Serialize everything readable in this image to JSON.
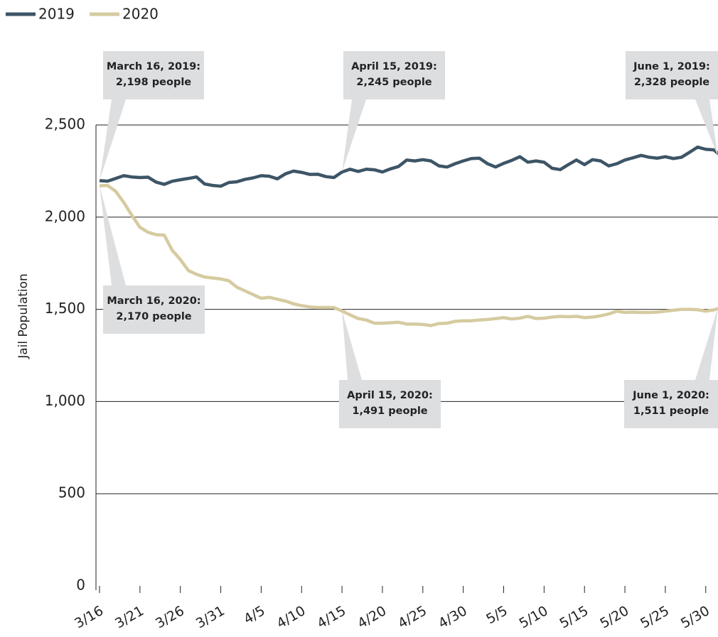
{
  "chart_data": {
    "type": "line",
    "y_label": "Jail Population",
    "categories": [
      "3/16",
      null,
      null,
      null,
      null,
      "3/21",
      null,
      null,
      null,
      null,
      "3/26",
      null,
      null,
      null,
      null,
      "3/31",
      null,
      null,
      null,
      null,
      "4/5",
      null,
      null,
      null,
      null,
      "4/10",
      null,
      null,
      null,
      null,
      "4/15",
      null,
      null,
      null,
      null,
      "4/20",
      null,
      null,
      null,
      null,
      "4/25",
      null,
      null,
      null,
      null,
      "4/30",
      null,
      null,
      null,
      null,
      "5/5",
      null,
      null,
      null,
      null,
      "5/10",
      null,
      null,
      null,
      null,
      "5/15",
      null,
      null,
      null,
      null,
      "5/20",
      null,
      null,
      null,
      null,
      "5/25",
      null,
      null,
      null,
      null,
      "5/30",
      null,
      null
    ],
    "series": [
      {
        "name": "2019",
        "color": "#3d5566",
        "values": [
          2198,
          2195,
          2210,
          2225,
          2218,
          2215,
          2217,
          2190,
          2178,
          2195,
          2203,
          2210,
          2218,
          2180,
          2172,
          2168,
          2188,
          2192,
          2205,
          2213,
          2225,
          2222,
          2208,
          2235,
          2250,
          2243,
          2232,
          2233,
          2220,
          2215,
          2245,
          2260,
          2248,
          2260,
          2257,
          2245,
          2262,
          2275,
          2310,
          2305,
          2312,
          2305,
          2278,
          2272,
          2290,
          2305,
          2318,
          2320,
          2290,
          2272,
          2292,
          2308,
          2328,
          2298,
          2305,
          2298,
          2265,
          2258,
          2285,
          2310,
          2285,
          2312,
          2305,
          2278,
          2290,
          2310,
          2322,
          2335,
          2325,
          2320,
          2328,
          2318,
          2325,
          2352,
          2380,
          2368,
          2365,
          2328
        ]
      },
      {
        "name": "2020",
        "color": "#d6caa0",
        "values": [
          2170,
          2172,
          2140,
          2080,
          2010,
          1945,
          1918,
          1905,
          1903,
          1820,
          1770,
          1710,
          1690,
          1675,
          1670,
          1665,
          1655,
          1620,
          1600,
          1580,
          1560,
          1565,
          1555,
          1545,
          1530,
          1520,
          1513,
          1510,
          1510,
          1510,
          1491,
          1470,
          1450,
          1442,
          1425,
          1425,
          1427,
          1430,
          1420,
          1420,
          1418,
          1412,
          1423,
          1425,
          1435,
          1438,
          1438,
          1442,
          1445,
          1450,
          1455,
          1448,
          1452,
          1462,
          1450,
          1452,
          1458,
          1462,
          1460,
          1462,
          1455,
          1458,
          1465,
          1475,
          1490,
          1483,
          1485,
          1483,
          1483,
          1485,
          1490,
          1495,
          1500,
          1500,
          1498,
          1490,
          1497,
          1511
        ]
      }
    ],
    "ylim": [
      0,
      2500
    ],
    "yticks": [
      0,
      500,
      {
        "value": 1000,
        "label": "1,000"
      },
      {
        "value": 1500,
        "label": "1,500"
      },
      {
        "value": 2000,
        "label": "2,000"
      },
      {
        "value": 2500,
        "label": "2,500"
      }
    ],
    "grid": true,
    "legend": "top-left",
    "annotations": [
      {
        "lines": [
          "March 16, 2019:",
          "2,198 people"
        ]
      },
      {
        "lines": [
          "April 15, 2019:",
          "2,245 people"
        ]
      },
      {
        "lines": [
          "June 1, 2019:",
          "2,328 people"
        ]
      },
      {
        "lines": [
          "March 16, 2020:",
          "2,170 people"
        ]
      },
      {
        "lines": [
          "April 15, 2020:",
          "1,491 people"
        ]
      },
      {
        "lines": [
          "June 1, 2020:",
          "1,511 people"
        ]
      }
    ]
  }
}
